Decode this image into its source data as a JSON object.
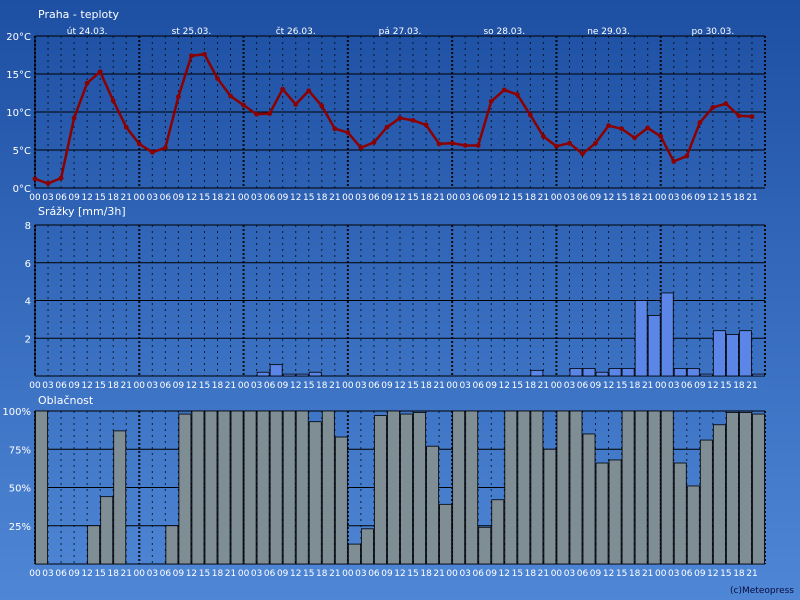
{
  "colors": {
    "bg_top": "#1d4fa3",
    "bg_bottom": "#4f87d6",
    "temp_line": "#8b0000",
    "precip_bar": "#5b86e8",
    "cloud_bar": "#7f8d94",
    "label": "#ffffff",
    "gridline": "#000000"
  },
  "footer": {
    "credit": "(c)Meteopress"
  },
  "chart_data": [
    {
      "type": "line",
      "title": "Praha - teploty",
      "unit": "°C",
      "day_labels": [
        "út 24.03.",
        "st 25.03.",
        "čt 26.03.",
        "pá 27.03.",
        "so 28.03.",
        "ne 29.03.",
        "po 30.03."
      ],
      "hour_labels": [
        "00",
        "03",
        "06",
        "09",
        "12",
        "15",
        "18",
        "21"
      ],
      "ylim": [
        0,
        20
      ],
      "yticks": [
        0,
        5,
        10,
        15,
        20
      ],
      "ytick_labels": [
        "0°C",
        "5°C",
        "10°C",
        "15°C",
        "20°C"
      ],
      "series": [
        {
          "values": [
            1.2,
            0.6,
            1.3,
            9.2,
            13.8,
            15.3,
            11.5,
            8.0,
            5.8,
            4.7,
            5.3,
            12.0,
            17.4,
            17.6,
            14.4,
            12.1,
            10.9,
            9.7,
            9.8,
            13.0,
            11.0,
            12.8,
            10.8,
            7.8,
            7.3,
            5.3,
            6.0,
            8.0,
            9.2,
            8.9,
            8.3,
            5.8,
            5.9,
            5.6,
            5.6,
            11.4,
            12.9,
            12.3,
            9.6,
            6.8,
            5.5,
            5.9,
            4.5,
            5.9,
            8.2,
            7.8,
            6.6,
            7.9,
            6.8,
            3.5,
            4.2,
            8.6,
            10.6,
            11.1,
            9.5,
            9.4
          ]
        }
      ],
      "grid": true
    },
    {
      "type": "bar",
      "title": "Srážky [mm/3h]",
      "hour_labels": [
        "00",
        "03",
        "06",
        "09",
        "12",
        "15",
        "18",
        "21"
      ],
      "ylim": [
        0,
        8
      ],
      "yticks": [
        2,
        4,
        6,
        8
      ],
      "ytick_labels": [
        "2",
        "4",
        "6",
        "8"
      ],
      "values": [
        0,
        0,
        0,
        0,
        0,
        0,
        0,
        0,
        0,
        0,
        0,
        0,
        0,
        0,
        0,
        0,
        0,
        0.2,
        0.6,
        0.1,
        0.1,
        0.2,
        0,
        0,
        0,
        0,
        0,
        0,
        0,
        0,
        0,
        0,
        0,
        0,
        0,
        0,
        0,
        0,
        0.3,
        0,
        0,
        0.4,
        0.4,
        0.2,
        0.4,
        0.4,
        4.0,
        3.2,
        4.4,
        0.4,
        0.4,
        0.1,
        2.4,
        2.2,
        2.4,
        0.1
      ],
      "grid": true
    },
    {
      "type": "bar",
      "title": "Oblačnost",
      "hour_labels": [
        "00",
        "03",
        "06",
        "09",
        "12",
        "15",
        "18",
        "21"
      ],
      "ylim": [
        0,
        100
      ],
      "yticks": [
        25,
        50,
        75,
        100
      ],
      "ytick_labels": [
        "25%",
        "50%",
        "75%",
        "100%"
      ],
      "values": [
        100,
        0,
        0,
        0,
        25,
        44,
        87,
        0,
        0,
        0,
        25,
        98,
        100,
        100,
        100,
        100,
        100,
        100,
        100,
        100,
        100,
        93,
        100,
        83,
        13,
        23,
        97,
        100,
        98,
        99,
        77,
        39,
        100,
        100,
        24,
        42,
        100,
        100,
        100,
        75,
        100,
        100,
        85,
        66,
        68,
        100,
        100,
        100,
        100,
        66,
        51,
        81,
        91,
        99,
        99,
        98
      ],
      "grid": true
    }
  ]
}
